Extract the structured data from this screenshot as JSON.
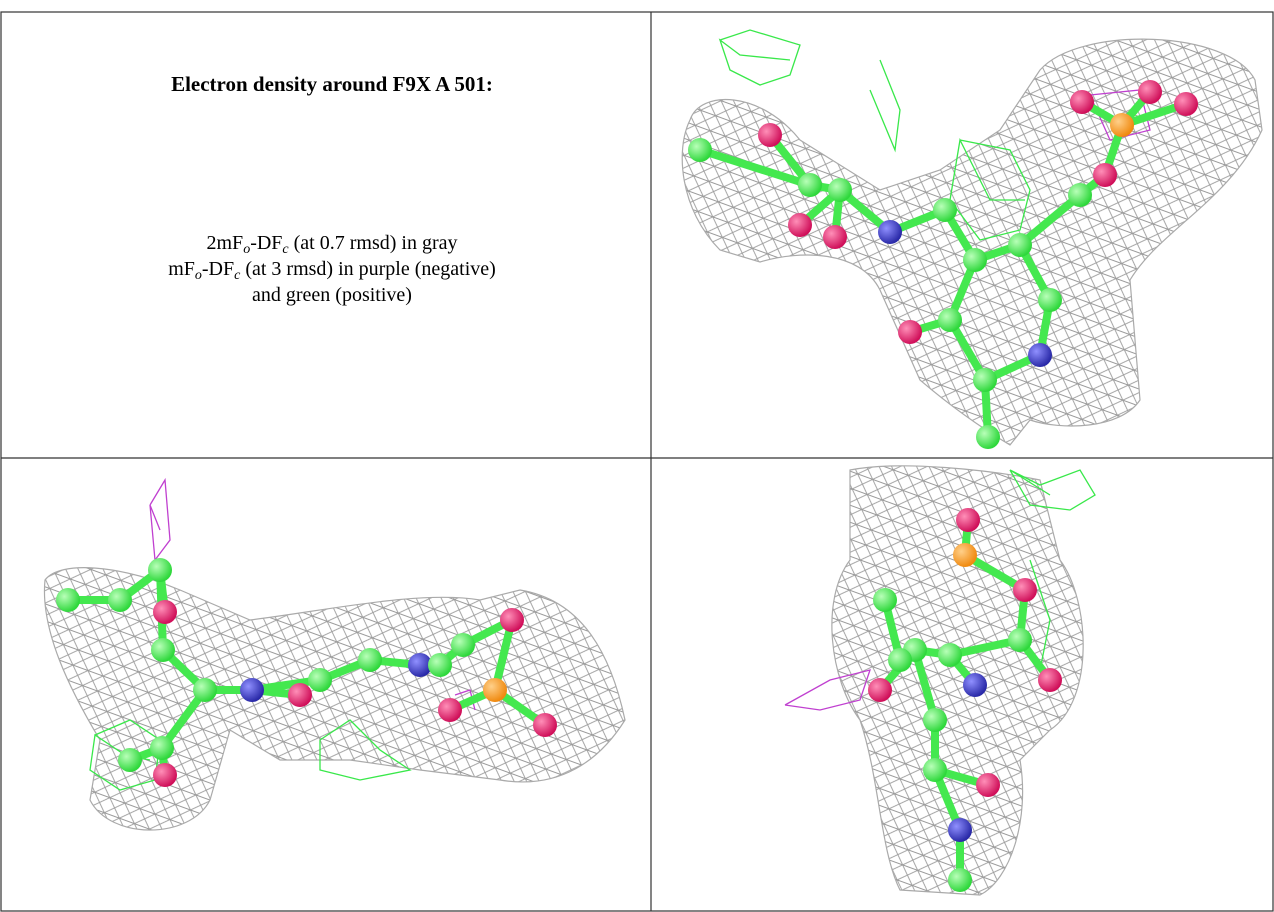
{
  "panel": {
    "title": "Electron density around F9X A 501:",
    "legend_lines": [
      [
        "2mF",
        "o",
        "-DF",
        "c",
        " (at 0.7 rmsd) in gray"
      ],
      [
        "mF",
        "o",
        "-DF",
        "c",
        " (at 3 rmsd) in purple (negative)"
      ],
      [
        "and green (positive)"
      ]
    ]
  }
}
